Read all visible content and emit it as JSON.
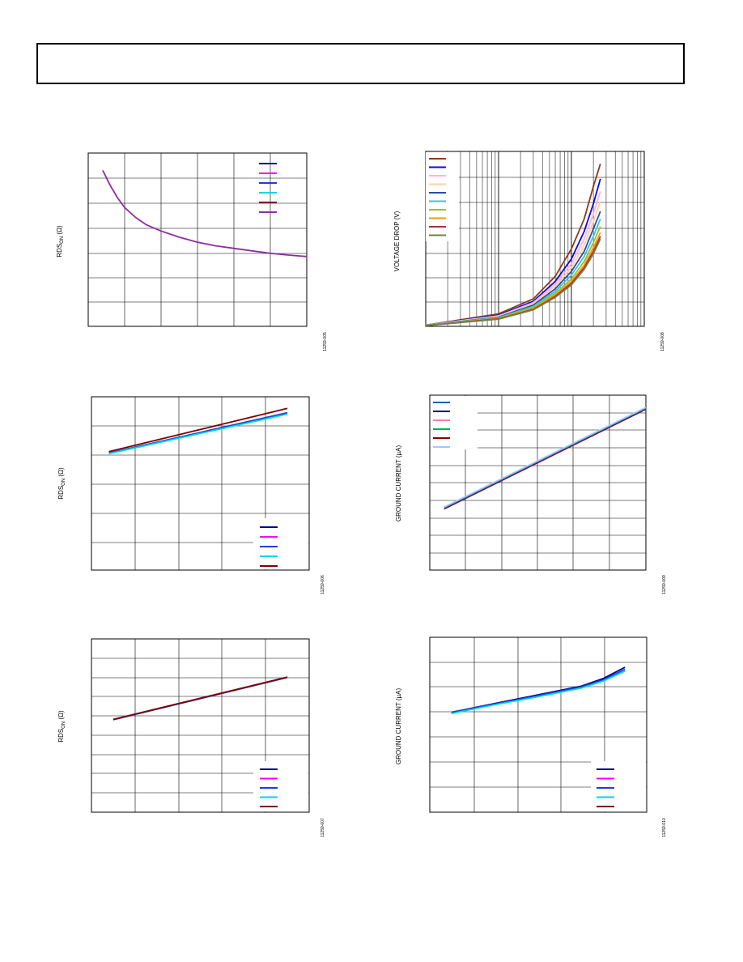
{
  "page": {
    "header_box": ""
  },
  "charts": [
    {
      "id": "c1",
      "ylabel_main": "RDS",
      "ylabel_sub": "ON",
      "ylabel_unit": " (Ω)",
      "fig_id": "11259-005",
      "legend_count": 6
    },
    {
      "id": "c2",
      "ylabel_main": "VOLTAGE DROP (V)",
      "fig_id": "11259-008",
      "legend_count": 10
    },
    {
      "id": "c3",
      "ylabel_main": "RDS",
      "ylabel_sub": "ON",
      "ylabel_unit": " (Ω)",
      "fig_id": "11259-006",
      "legend_count": 5
    },
    {
      "id": "c4",
      "ylabel_main": "GROUND CURRENT (µA)",
      "fig_id": "11259-009",
      "legend_count": 6
    },
    {
      "id": "c5",
      "ylabel_main": "RDS",
      "ylabel_sub": "ON",
      "ylabel_unit": " (Ω)",
      "fig_id": "11259-007",
      "legend_count": 5
    },
    {
      "id": "c6",
      "ylabel_main": "GROUND CURRENT (µA)",
      "fig_id": "11259-010",
      "legend_count": 5
    }
  ],
  "chart_data": [
    {
      "type": "line",
      "title": "",
      "xlabel": "",
      "ylabel": "RDSON (Ω)",
      "grid": true,
      "xlim": [
        0,
        6
      ],
      "ylim": [
        0,
        7
      ],
      "legend": "top-right",
      "legend_colors": [
        "#00008b",
        "#ff00ff",
        "#1f3fd6",
        "#00d5e8",
        "#7f0000",
        "#8b2fa0"
      ],
      "series": [
        {
          "color": "#8b2fa0",
          "x": [
            0.4,
            0.6,
            0.8,
            1.0,
            1.3,
            1.6,
            2.0,
            2.5,
            3.0,
            3.5,
            4.0,
            4.5,
            5.0,
            5.5,
            6.0
          ],
          "y": [
            6.3,
            5.7,
            5.2,
            4.8,
            4.4,
            4.1,
            3.85,
            3.6,
            3.4,
            3.25,
            3.15,
            3.05,
            2.95,
            2.88,
            2.82
          ]
        }
      ]
    },
    {
      "type": "line",
      "title": "",
      "xlabel": "",
      "ylabel": "VOLTAGE DROP (V)",
      "grid": true,
      "xscale": "log",
      "xlim": [
        0.001,
        1
      ],
      "ylim": [
        0,
        7
      ],
      "legend": "top-left",
      "legend_colors": [
        "#8b3a1e",
        "#0b0bd8",
        "#ffb0e0",
        "#ffd0a0",
        "#2050b0",
        "#40c0d0",
        "#a0c020",
        "#ff9020",
        "#b03030",
        "#708040"
      ],
      "series": [
        {
          "color": "#8b3a1e",
          "x": [
            0.001,
            0.01,
            0.03,
            0.06,
            0.1,
            0.15,
            0.2,
            0.25
          ],
          "y": [
            0.05,
            0.5,
            1.1,
            2.0,
            3.1,
            4.3,
            5.6,
            6.5
          ]
        },
        {
          "color": "#0b0bd8",
          "x": [
            0.001,
            0.01,
            0.03,
            0.06,
            0.1,
            0.15,
            0.2,
            0.25
          ],
          "y": [
            0.05,
            0.45,
            1.0,
            1.8,
            2.7,
            3.8,
            4.9,
            5.9
          ]
        },
        {
          "color": "#ffb0e0",
          "x": [
            0.001,
            0.01,
            0.03,
            0.06,
            0.1,
            0.15,
            0.2,
            0.25
          ],
          "y": [
            0.05,
            0.42,
            0.95,
            1.7,
            2.5,
            3.5,
            4.5,
            5.4
          ]
        },
        {
          "color": "#ffd0a0",
          "x": [
            0.001,
            0.01,
            0.03,
            0.06,
            0.1,
            0.15,
            0.2,
            0.25
          ],
          "y": [
            0.04,
            0.4,
            0.9,
            1.6,
            2.35,
            3.25,
            4.2,
            5.0
          ]
        },
        {
          "color": "#2050b0",
          "x": [
            0.001,
            0.01,
            0.03,
            0.06,
            0.1,
            0.15,
            0.2,
            0.25
          ],
          "y": [
            0.04,
            0.37,
            0.85,
            1.5,
            2.2,
            3.0,
            3.9,
            4.6
          ]
        },
        {
          "color": "#40c0d0",
          "x": [
            0.001,
            0.01,
            0.03,
            0.06,
            0.1,
            0.15,
            0.2,
            0.25
          ],
          "y": [
            0.04,
            0.35,
            0.8,
            1.4,
            2.05,
            2.8,
            3.6,
            4.3
          ]
        },
        {
          "color": "#a0c020",
          "x": [
            0.001,
            0.01,
            0.03,
            0.06,
            0.1,
            0.15,
            0.2,
            0.25
          ],
          "y": [
            0.03,
            0.33,
            0.75,
            1.32,
            1.9,
            2.6,
            3.35,
            4.0
          ]
        },
        {
          "color": "#ff9020",
          "x": [
            0.001,
            0.01,
            0.03,
            0.06,
            0.1,
            0.15,
            0.2,
            0.25
          ],
          "y": [
            0.03,
            0.31,
            0.71,
            1.25,
            1.8,
            2.45,
            3.15,
            3.75
          ]
        },
        {
          "color": "#b03030",
          "x": [
            0.001,
            0.01,
            0.03,
            0.06,
            0.1,
            0.15,
            0.2,
            0.25
          ],
          "y": [
            0.03,
            0.3,
            0.68,
            1.2,
            1.72,
            2.35,
            3.0,
            3.6
          ]
        },
        {
          "color": "#708040",
          "x": [
            0.001,
            0.01,
            0.03,
            0.06,
            0.1,
            0.15,
            0.2,
            0.25
          ],
          "y": [
            0.03,
            0.29,
            0.66,
            1.16,
            1.66,
            2.28,
            2.9,
            3.5
          ]
        }
      ]
    },
    {
      "type": "line",
      "title": "",
      "xlabel": "",
      "ylabel": "RDSON (Ω)",
      "grid": true,
      "xlim": [
        0,
        5
      ],
      "ylim": [
        0,
        6
      ],
      "legend": "bottom-right",
      "legend_colors": [
        "#00008b",
        "#ff00ff",
        "#1f3fd6",
        "#00d5e8",
        "#7f0000"
      ],
      "series": [
        {
          "color": "#7f0000",
          "x": [
            0.4,
            4.5
          ],
          "y": [
            4.1,
            5.6
          ]
        },
        {
          "color": "#1f3fd6",
          "x": [
            0.4,
            4.5
          ],
          "y": [
            4.05,
            5.45
          ]
        },
        {
          "color": "#00d5e8",
          "x": [
            0.4,
            4.5
          ],
          "y": [
            4.03,
            5.4
          ]
        }
      ]
    },
    {
      "type": "line",
      "title": "",
      "xlabel": "",
      "ylabel": "GROUND CURRENT (µA)",
      "grid": true,
      "xlim": [
        0,
        6
      ],
      "ylim": [
        0,
        10
      ],
      "legend": "top-left",
      "legend_colors": [
        "#1f5fbf",
        "#00008b",
        "#ff7fa0",
        "#00b050",
        "#8b0000",
        "#99ccff"
      ],
      "series": [
        {
          "color": "#8b0000",
          "x": [
            0.4,
            6.0
          ],
          "y": [
            3.5,
            9.2
          ]
        },
        {
          "color": "#1f5fbf",
          "x": [
            0.4,
            6.0
          ],
          "y": [
            3.55,
            9.25
          ]
        },
        {
          "color": "#99ccff",
          "x": [
            0.4,
            6.0
          ],
          "y": [
            3.6,
            9.3
          ]
        }
      ]
    },
    {
      "type": "line",
      "title": "",
      "xlabel": "",
      "ylabel": "RDSON (Ω)",
      "grid": true,
      "xlim": [
        0,
        5
      ],
      "ylim": [
        0,
        9
      ],
      "legend": "bottom-right",
      "legend_colors": [
        "#00008b",
        "#ff00ff",
        "#1f3fd6",
        "#00d5e8",
        "#7f0000"
      ],
      "series": [
        {
          "color": "#1f3fd6",
          "x": [
            0.5,
            4.5
          ],
          "y": [
            4.8,
            7.0
          ]
        },
        {
          "color": "#7f0000",
          "x": [
            0.5,
            4.5
          ],
          "y": [
            4.82,
            7.02
          ]
        }
      ]
    },
    {
      "type": "line",
      "title": "",
      "xlabel": "",
      "ylabel": "GROUND CURRENT (µA)",
      "grid": true,
      "xlim": [
        0,
        5
      ],
      "ylim": [
        0,
        7
      ],
      "legend": "bottom-right",
      "legend_colors": [
        "#00008b",
        "#ff00ff",
        "#1f3fd6",
        "#00d5e8",
        "#7f0000"
      ],
      "series": [
        {
          "color": "#00008b",
          "x": [
            0.5,
            1.5,
            2.5,
            3.5,
            4.0,
            4.5
          ],
          "y": [
            4.0,
            4.35,
            4.7,
            5.05,
            5.35,
            5.8
          ]
        },
        {
          "color": "#1f3fd6",
          "x": [
            0.5,
            1.5,
            2.5,
            3.5,
            4.0,
            4.5
          ],
          "y": [
            4.0,
            4.33,
            4.67,
            5.02,
            5.3,
            5.72
          ]
        },
        {
          "color": "#00d5e8",
          "x": [
            0.5,
            1.5,
            2.5,
            3.5,
            4.0,
            4.5
          ],
          "y": [
            3.95,
            4.3,
            4.62,
            4.97,
            5.25,
            5.65
          ]
        }
      ]
    }
  ]
}
